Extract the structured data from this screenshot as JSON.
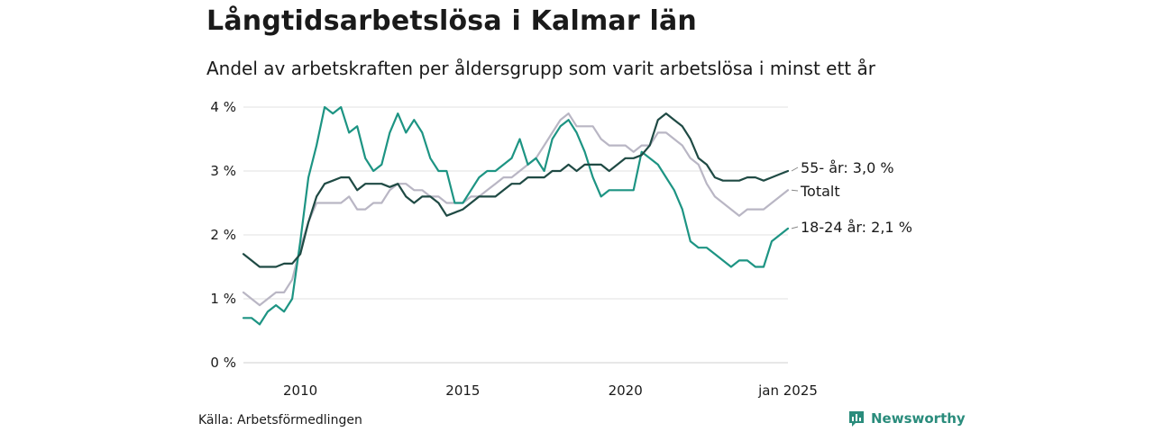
{
  "title": "Långtidsarbetslösa i Kalmar län",
  "subtitle": "Andel av arbetskraften per åldersgrupp som varit arbetslösa i minst ett år",
  "source": "Källa: Arbetsförmedlingen",
  "brand": {
    "name": "Newsworthy",
    "icon": "newsworthy-logo-icon",
    "color": "#2a8c7c"
  },
  "chart_data": {
    "type": "line",
    "xlim": [
      2008.25,
      2025.0
    ],
    "ylim": [
      0,
      4
    ],
    "x_ticks": [
      {
        "value": 2010,
        "label": "2010"
      },
      {
        "value": 2015,
        "label": "2015"
      },
      {
        "value": 2020,
        "label": "2020"
      },
      {
        "value": 2025,
        "label": "jan 2025"
      }
    ],
    "y_ticks": [
      {
        "value": 0,
        "label": "0 %"
      },
      {
        "value": 1,
        "label": "1 %"
      },
      {
        "value": 2,
        "label": "2 %"
      },
      {
        "value": 3,
        "label": "3 %"
      },
      {
        "value": 4,
        "label": "4 %"
      }
    ],
    "grid": "horizontal",
    "series": [
      {
        "name": "Totalt",
        "label": "Totalt",
        "color": "#b9b6c4",
        "data": [
          [
            2008.25,
            1.1
          ],
          [
            2008.5,
            1.0
          ],
          [
            2008.75,
            0.9
          ],
          [
            2009.0,
            1.0
          ],
          [
            2009.25,
            1.1
          ],
          [
            2009.5,
            1.1
          ],
          [
            2009.75,
            1.3
          ],
          [
            2010.0,
            1.8
          ],
          [
            2010.25,
            2.2
          ],
          [
            2010.5,
            2.5
          ],
          [
            2010.75,
            2.5
          ],
          [
            2011.0,
            2.5
          ],
          [
            2011.25,
            2.5
          ],
          [
            2011.5,
            2.6
          ],
          [
            2011.75,
            2.4
          ],
          [
            2012.0,
            2.4
          ],
          [
            2012.25,
            2.5
          ],
          [
            2012.5,
            2.5
          ],
          [
            2012.75,
            2.7
          ],
          [
            2013.0,
            2.8
          ],
          [
            2013.25,
            2.8
          ],
          [
            2013.5,
            2.7
          ],
          [
            2013.75,
            2.7
          ],
          [
            2014.0,
            2.6
          ],
          [
            2014.25,
            2.6
          ],
          [
            2014.5,
            2.5
          ],
          [
            2014.75,
            2.5
          ],
          [
            2015.0,
            2.5
          ],
          [
            2015.25,
            2.6
          ],
          [
            2015.5,
            2.6
          ],
          [
            2015.75,
            2.7
          ],
          [
            2016.0,
            2.8
          ],
          [
            2016.25,
            2.9
          ],
          [
            2016.5,
            2.9
          ],
          [
            2016.75,
            3.0
          ],
          [
            2017.0,
            3.1
          ],
          [
            2017.25,
            3.2
          ],
          [
            2017.5,
            3.4
          ],
          [
            2017.75,
            3.6
          ],
          [
            2018.0,
            3.8
          ],
          [
            2018.25,
            3.9
          ],
          [
            2018.5,
            3.7
          ],
          [
            2018.75,
            3.7
          ],
          [
            2019.0,
            3.7
          ],
          [
            2019.25,
            3.5
          ],
          [
            2019.5,
            3.4
          ],
          [
            2019.75,
            3.4
          ],
          [
            2020.0,
            3.4
          ],
          [
            2020.25,
            3.3
          ],
          [
            2020.5,
            3.4
          ],
          [
            2020.75,
            3.4
          ],
          [
            2021.0,
            3.6
          ],
          [
            2021.25,
            3.6
          ],
          [
            2021.5,
            3.5
          ],
          [
            2021.75,
            3.4
          ],
          [
            2022.0,
            3.2
          ],
          [
            2022.25,
            3.1
          ],
          [
            2022.5,
            2.8
          ],
          [
            2022.75,
            2.6
          ],
          [
            2023.0,
            2.5
          ],
          [
            2023.25,
            2.4
          ],
          [
            2023.5,
            2.3
          ],
          [
            2023.75,
            2.4
          ],
          [
            2024.0,
            2.4
          ],
          [
            2024.25,
            2.4
          ],
          [
            2024.5,
            2.5
          ],
          [
            2024.75,
            2.6
          ],
          [
            2025.0,
            2.7
          ]
        ]
      },
      {
        "name": "18-24 år",
        "label": "18-24 år: 2,1 %",
        "color": "#1d9483",
        "data": [
          [
            2008.25,
            0.7
          ],
          [
            2008.5,
            0.7
          ],
          [
            2008.75,
            0.6
          ],
          [
            2009.0,
            0.8
          ],
          [
            2009.25,
            0.9
          ],
          [
            2009.5,
            0.8
          ],
          [
            2009.75,
            1.0
          ],
          [
            2010.0,
            1.9
          ],
          [
            2010.25,
            2.9
          ],
          [
            2010.5,
            3.4
          ],
          [
            2010.75,
            4.0
          ],
          [
            2011.0,
            3.9
          ],
          [
            2011.25,
            4.0
          ],
          [
            2011.5,
            3.6
          ],
          [
            2011.75,
            3.7
          ],
          [
            2012.0,
            3.2
          ],
          [
            2012.25,
            3.0
          ],
          [
            2012.5,
            3.1
          ],
          [
            2012.75,
            3.6
          ],
          [
            2013.0,
            3.9
          ],
          [
            2013.25,
            3.6
          ],
          [
            2013.5,
            3.8
          ],
          [
            2013.75,
            3.6
          ],
          [
            2014.0,
            3.2
          ],
          [
            2014.25,
            3.0
          ],
          [
            2014.5,
            3.0
          ],
          [
            2014.75,
            2.5
          ],
          [
            2015.0,
            2.5
          ],
          [
            2015.25,
            2.7
          ],
          [
            2015.5,
            2.9
          ],
          [
            2015.75,
            3.0
          ],
          [
            2016.0,
            3.0
          ],
          [
            2016.25,
            3.1
          ],
          [
            2016.5,
            3.2
          ],
          [
            2016.75,
            3.5
          ],
          [
            2017.0,
            3.1
          ],
          [
            2017.25,
            3.2
          ],
          [
            2017.5,
            3.0
          ],
          [
            2017.75,
            3.5
          ],
          [
            2018.0,
            3.7
          ],
          [
            2018.25,
            3.8
          ],
          [
            2018.5,
            3.6
          ],
          [
            2018.75,
            3.3
          ],
          [
            2019.0,
            2.9
          ],
          [
            2019.25,
            2.6
          ],
          [
            2019.5,
            2.7
          ],
          [
            2019.75,
            2.7
          ],
          [
            2020.0,
            2.7
          ],
          [
            2020.25,
            2.7
          ],
          [
            2020.5,
            3.3
          ],
          [
            2020.75,
            3.2
          ],
          [
            2021.0,
            3.1
          ],
          [
            2021.25,
            2.9
          ],
          [
            2021.5,
            2.7
          ],
          [
            2021.75,
            2.4
          ],
          [
            2022.0,
            1.9
          ],
          [
            2022.25,
            1.8
          ],
          [
            2022.5,
            1.8
          ],
          [
            2022.75,
            1.7
          ],
          [
            2023.0,
            1.6
          ],
          [
            2023.25,
            1.5
          ],
          [
            2023.5,
            1.6
          ],
          [
            2023.75,
            1.6
          ],
          [
            2024.0,
            1.5
          ],
          [
            2024.25,
            1.5
          ],
          [
            2024.5,
            1.9
          ],
          [
            2024.75,
            2.0
          ],
          [
            2025.0,
            2.1
          ]
        ]
      },
      {
        "name": "55- år",
        "label": "55- år: 3,0 %",
        "color": "#1f4a44",
        "data": [
          [
            2008.25,
            1.7
          ],
          [
            2008.5,
            1.6
          ],
          [
            2008.75,
            1.5
          ],
          [
            2009.0,
            1.5
          ],
          [
            2009.25,
            1.5
          ],
          [
            2009.5,
            1.55
          ],
          [
            2009.75,
            1.55
          ],
          [
            2010.0,
            1.7
          ],
          [
            2010.25,
            2.2
          ],
          [
            2010.5,
            2.6
          ],
          [
            2010.75,
            2.8
          ],
          [
            2011.0,
            2.85
          ],
          [
            2011.25,
            2.9
          ],
          [
            2011.5,
            2.9
          ],
          [
            2011.75,
            2.7
          ],
          [
            2012.0,
            2.8
          ],
          [
            2012.25,
            2.8
          ],
          [
            2012.5,
            2.8
          ],
          [
            2012.75,
            2.75
          ],
          [
            2013.0,
            2.8
          ],
          [
            2013.25,
            2.6
          ],
          [
            2013.5,
            2.5
          ],
          [
            2013.75,
            2.6
          ],
          [
            2014.0,
            2.6
          ],
          [
            2014.25,
            2.5
          ],
          [
            2014.5,
            2.3
          ],
          [
            2014.75,
            2.35
          ],
          [
            2015.0,
            2.4
          ],
          [
            2015.25,
            2.5
          ],
          [
            2015.5,
            2.6
          ],
          [
            2015.75,
            2.6
          ],
          [
            2016.0,
            2.6
          ],
          [
            2016.25,
            2.7
          ],
          [
            2016.5,
            2.8
          ],
          [
            2016.75,
            2.8
          ],
          [
            2017.0,
            2.9
          ],
          [
            2017.25,
            2.9
          ],
          [
            2017.5,
            2.9
          ],
          [
            2017.75,
            3.0
          ],
          [
            2018.0,
            3.0
          ],
          [
            2018.25,
            3.1
          ],
          [
            2018.5,
            3.0
          ],
          [
            2018.75,
            3.1
          ],
          [
            2019.0,
            3.1
          ],
          [
            2019.25,
            3.1
          ],
          [
            2019.5,
            3.0
          ],
          [
            2019.75,
            3.1
          ],
          [
            2020.0,
            3.2
          ],
          [
            2020.25,
            3.2
          ],
          [
            2020.5,
            3.25
          ],
          [
            2020.75,
            3.4
          ],
          [
            2021.0,
            3.8
          ],
          [
            2021.25,
            3.9
          ],
          [
            2021.5,
            3.8
          ],
          [
            2021.75,
            3.7
          ],
          [
            2022.0,
            3.5
          ],
          [
            2022.25,
            3.2
          ],
          [
            2022.5,
            3.1
          ],
          [
            2022.75,
            2.9
          ],
          [
            2023.0,
            2.85
          ],
          [
            2023.25,
            2.85
          ],
          [
            2023.5,
            2.85
          ],
          [
            2023.75,
            2.9
          ],
          [
            2024.0,
            2.9
          ],
          [
            2024.25,
            2.85
          ],
          [
            2024.5,
            2.9
          ],
          [
            2024.75,
            2.95
          ],
          [
            2025.0,
            3.0
          ]
        ]
      }
    ]
  }
}
